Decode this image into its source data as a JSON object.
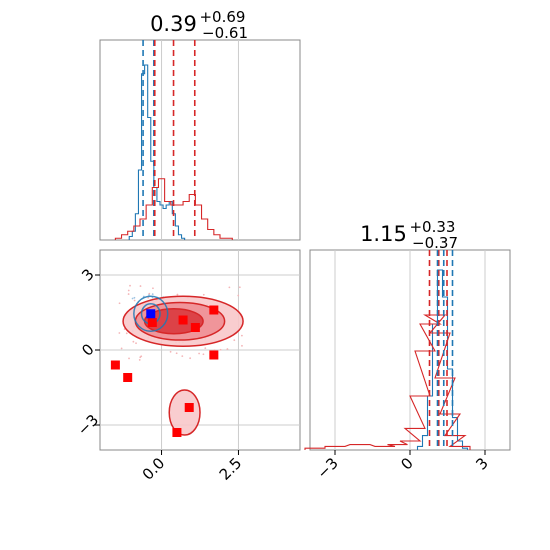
{
  "chart_data": [
    {
      "type": "histogram",
      "panel": "marginal-param-1",
      "title_value": "0.39",
      "title_upper": "+0.69",
      "title_lower": "−0.61",
      "xlim": [
        -2.0,
        4.5
      ],
      "grid": true,
      "series": [
        {
          "name": "",
          "color": "#1f77b4",
          "bins_x": [
            -1.0,
            -0.9,
            -0.8,
            -0.7,
            -0.6,
            -0.5,
            -0.4,
            -0.3,
            -0.2,
            -0.1,
            0.0,
            0.1,
            0.2,
            0.3,
            0.4,
            0.5,
            0.6,
            0.7
          ],
          "heights": [
            0.02,
            0.05,
            0.15,
            0.4,
            0.95,
            1.0,
            0.7,
            0.45,
            0.3,
            0.22,
            0.2,
            0.18,
            0.2,
            0.22,
            0.15,
            0.08,
            0.03,
            0.01
          ]
        },
        {
          "name": "",
          "color": "#d62728",
          "bins_x": [
            -1.4,
            -1.2,
            -1.0,
            -0.8,
            -0.6,
            -0.4,
            -0.2,
            0.0,
            0.2,
            0.4,
            0.6,
            0.8,
            1.0,
            1.2,
            1.4,
            1.6,
            1.8,
            2.0,
            2.2
          ],
          "heights": [
            0.01,
            0.03,
            0.05,
            0.08,
            0.12,
            0.2,
            0.3,
            0.35,
            0.22,
            0.2,
            0.2,
            0.22,
            0.26,
            0.2,
            0.12,
            0.06,
            0.03,
            0.01,
            0.01
          ]
        }
      ],
      "quantile_lines": [
        {
          "color": "#1f77b4",
          "x": [
            -0.6,
            -0.25
          ]
        },
        {
          "color": "#d62728",
          "x": [
            -0.22,
            0.39,
            1.08
          ]
        }
      ]
    },
    {
      "type": "histogram",
      "panel": "marginal-param-2",
      "title_value": "1.15",
      "title_upper": "+0.33",
      "title_lower": "−0.37",
      "xlim": [
        -4.0,
        4.0
      ],
      "xticks": [
        -3,
        0,
        3
      ],
      "xticklabels": [
        "−3",
        "0",
        "3"
      ],
      "grid": true,
      "series": [
        {
          "name": "",
          "color": "#1f77b4",
          "bins_x": [
            0.4,
            0.6,
            0.8,
            1.0,
            1.2,
            1.4,
            1.6,
            1.8,
            2.0,
            2.2
          ],
          "heights": [
            0.02,
            0.08,
            0.3,
            0.7,
            1.0,
            0.85,
            0.45,
            0.18,
            0.05,
            0.01
          ]
        },
        {
          "name": "",
          "color": "#d62728",
          "bins_x": [
            -3.8,
            -3.0,
            -2.0,
            -1.0,
            -0.5,
            0.0,
            0.2,
            0.4,
            0.6,
            0.8,
            1.0,
            1.2,
            1.4,
            1.6,
            1.8,
            2.0
          ],
          "heights": [
            0.01,
            0.02,
            0.03,
            0.02,
            0.03,
            0.05,
            0.12,
            0.3,
            0.55,
            0.7,
            0.75,
            0.65,
            0.4,
            0.2,
            0.08,
            0.02
          ]
        }
      ],
      "quantile_lines": [
        {
          "color": "#d62728",
          "x": [
            0.78,
            1.15,
            1.48
          ]
        },
        {
          "color": "#1f77b4",
          "x": [
            1.1,
            1.35,
            1.7
          ]
        }
      ]
    },
    {
      "type": "contour_scatter",
      "panel": "joint-param-1-vs-param-2",
      "xlim": [
        -2.0,
        4.5
      ],
      "ylim": [
        -4.0,
        4.0
      ],
      "xticks": [
        0.0,
        2.5
      ],
      "xticklabels": [
        "0.0",
        "2.5"
      ],
      "yticks": [
        3,
        0,
        -3
      ],
      "yticklabels": [
        "3",
        "0",
        "−3"
      ],
      "grid": true,
      "red_squares": [
        {
          "x": 1.7,
          "y": 1.6
        },
        {
          "x": 0.7,
          "y": 1.2
        },
        {
          "x": 1.1,
          "y": 0.9
        },
        {
          "x": -0.3,
          "y": 1.1
        },
        {
          "x": 1.7,
          "y": -0.2
        },
        {
          "x": -1.5,
          "y": -0.6
        },
        {
          "x": -1.1,
          "y": -1.1
        },
        {
          "x": 0.9,
          "y": -2.3
        },
        {
          "x": 0.5,
          "y": -3.3
        }
      ],
      "blue_squares": [
        {
          "x": -0.35,
          "y": 1.45
        }
      ],
      "red_contours": [
        {
          "level": "outer",
          "cx": 0.7,
          "cy": 1.15,
          "rx": 1.95,
          "ry": 1.0
        },
        {
          "level": "mid",
          "cx": 0.6,
          "cy": 1.15,
          "rx": 1.45,
          "ry": 0.75
        },
        {
          "level": "inner",
          "cx": 0.4,
          "cy": 1.15,
          "rx": 0.95,
          "ry": 0.5
        },
        {
          "level": "lobe",
          "cx": 0.75,
          "cy": -2.5,
          "rx": 0.5,
          "ry": 0.9
        }
      ],
      "blue_contours": [
        {
          "level": "outer",
          "cx": -0.35,
          "cy": 1.45,
          "rx": 0.55,
          "ry": 0.7
        },
        {
          "level": "inner",
          "cx": -0.35,
          "cy": 1.45,
          "rx": 0.3,
          "ry": 0.4
        }
      ]
    }
  ]
}
